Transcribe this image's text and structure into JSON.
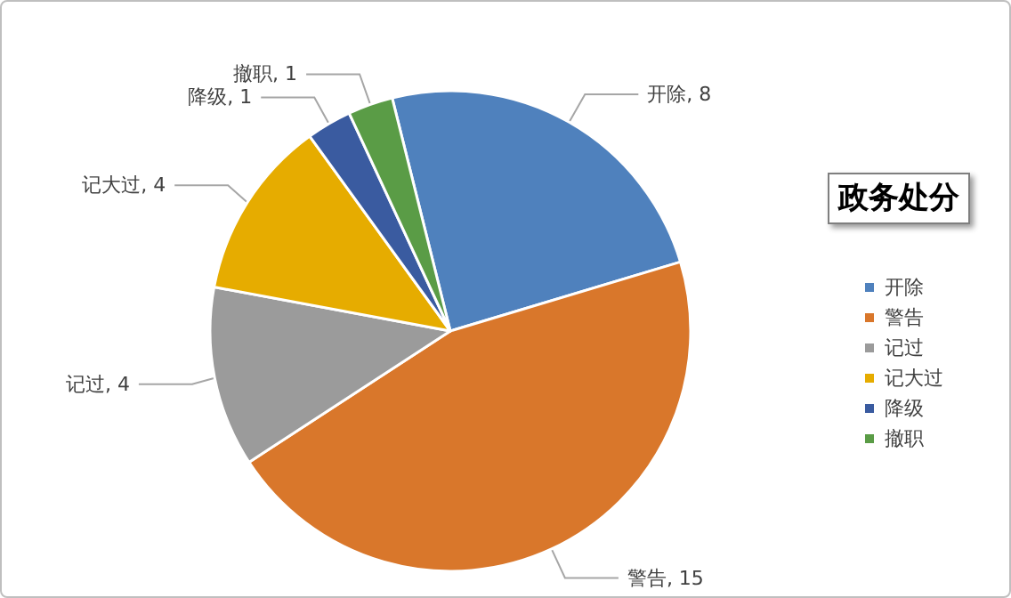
{
  "chart_data": {
    "type": "pie",
    "title": "政务处分",
    "categories": [
      "开除",
      "警告",
      "记过",
      "记大过",
      "降级",
      "撤职"
    ],
    "values": [
      8,
      15,
      4,
      4,
      1,
      1
    ],
    "colors": [
      "#4f81bd",
      "#d9772b",
      "#9b9b9b",
      "#e6ac00",
      "#3a5ba0",
      "#5a9c46"
    ],
    "value_labels": [
      "开除, 8",
      "警告, 15",
      "记过, 4",
      "记大过, 4",
      "降级, 1",
      "撤职, 1"
    ],
    "legend": "right"
  }
}
